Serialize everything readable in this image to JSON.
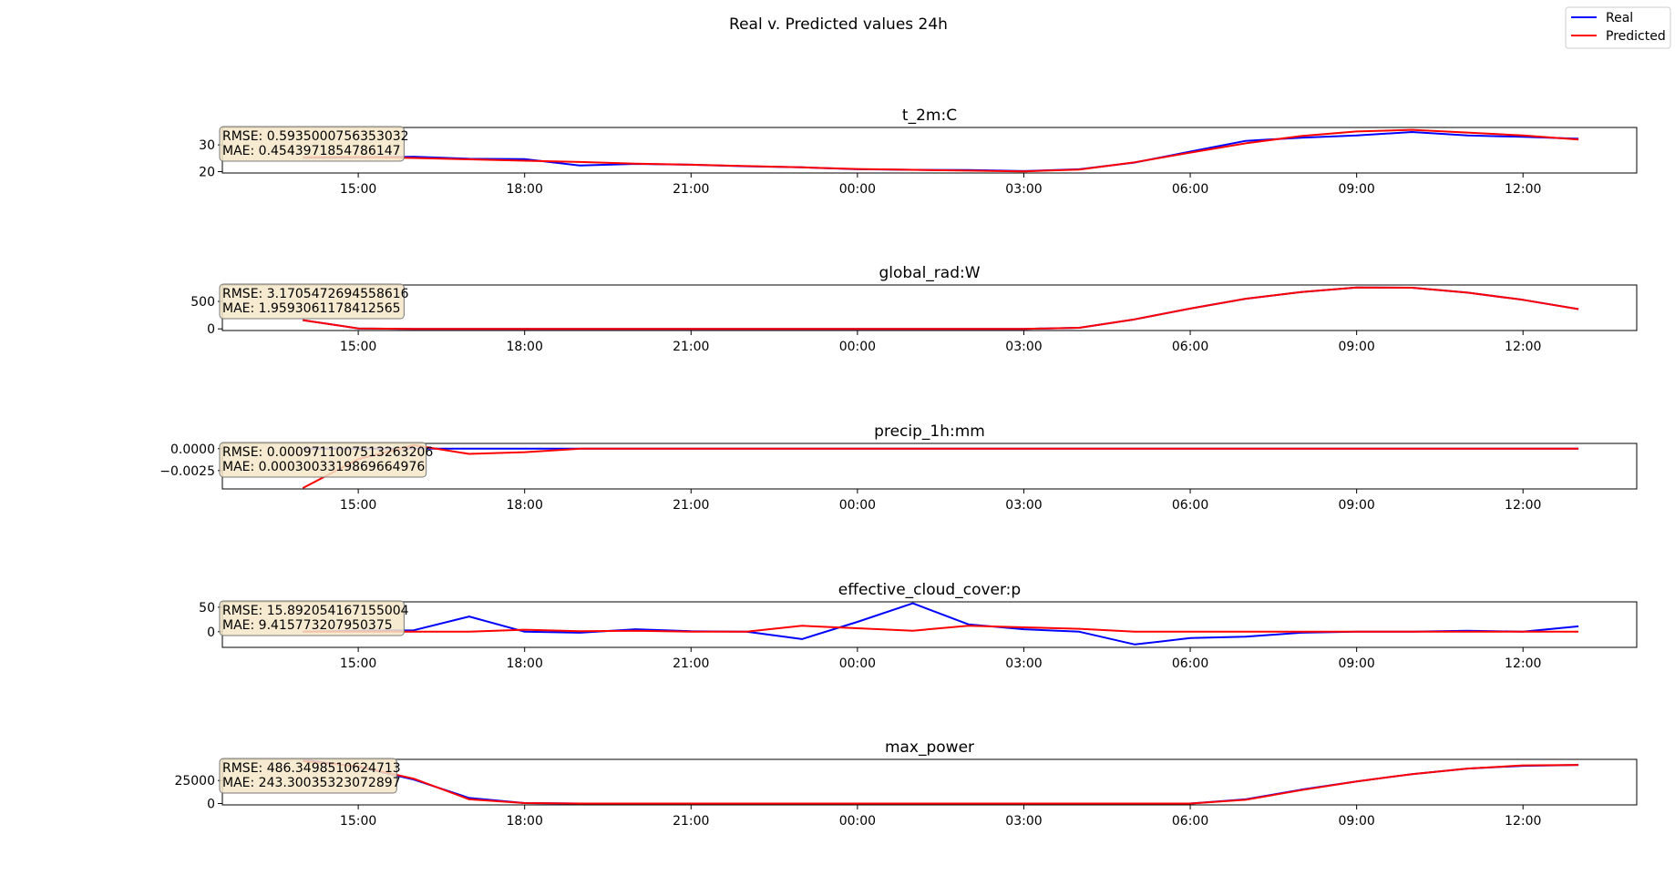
{
  "title": "Real v. Predicted values 24h",
  "legend": {
    "placement": "top-right",
    "entries": [
      {
        "name": "Real",
        "color": "#0000ff"
      },
      {
        "name": "Predicted",
        "color": "#ff0000"
      }
    ]
  },
  "chart_data": [
    {
      "type": "line",
      "title": "t_2m:C",
      "x_ticks": [
        "15:00",
        "18:00",
        "21:00",
        "00:00",
        "03:00",
        "06:00",
        "09:00",
        "12:00"
      ],
      "ylim": [
        19.5,
        36.5
      ],
      "y_ticks": [
        "20",
        "30"
      ],
      "y_tick_values": [
        20,
        30
      ],
      "stats": [
        "RMSE: 0.5935000756353032",
        "MAE: 0.4543971854786147"
      ],
      "series": [
        {
          "name": "Real",
          "color": "#0000ff",
          "values": [
            25.2,
            25.3,
            25.6,
            24.8,
            24.7,
            22.3,
            22.9,
            22.6,
            22.0,
            21.6,
            20.9,
            20.7,
            20.6,
            20.2,
            20.9,
            23.4,
            27.5,
            31.5,
            32.7,
            33.5,
            34.8,
            33.5,
            33.0,
            32.3
          ]
        },
        {
          "name": "Predicted",
          "color": "#ff0000",
          "values": [
            25.4,
            25.5,
            25.1,
            24.6,
            24.1,
            23.6,
            23.0,
            22.6,
            22.1,
            21.6,
            21.0,
            20.7,
            20.4,
            20.1,
            20.8,
            23.5,
            27.1,
            30.6,
            33.3,
            35.0,
            35.6,
            34.6,
            33.5,
            32.0
          ]
        }
      ]
    },
    {
      "type": "line",
      "title": "global_rad:W",
      "x_ticks": [
        "15:00",
        "18:00",
        "21:00",
        "00:00",
        "03:00",
        "06:00",
        "09:00",
        "12:00"
      ],
      "ylim": [
        -30,
        800
      ],
      "y_ticks": [
        "0",
        "500"
      ],
      "y_tick_values": [
        0,
        500
      ],
      "stats": [
        "RMSE: 3.1705472694558616",
        "MAE: 1.9593061178412565"
      ],
      "series": [
        {
          "name": "Real",
          "color": "#0000ff",
          "values": [
            160,
            8,
            0,
            0,
            0,
            0,
            0,
            0,
            0,
            0,
            0,
            0,
            0,
            0,
            20,
            175,
            370,
            550,
            670,
            755,
            750,
            660,
            530,
            360
          ]
        },
        {
          "name": "Predicted",
          "color": "#ff0000",
          "values": [
            160,
            8,
            0,
            0,
            0,
            0,
            0,
            0,
            0,
            0,
            0,
            0,
            0,
            0,
            20,
            175,
            370,
            550,
            670,
            755,
            750,
            660,
            530,
            360
          ]
        }
      ]
    },
    {
      "type": "line",
      "title": "precip_1h:mm",
      "x_ticks": [
        "15:00",
        "18:00",
        "21:00",
        "00:00",
        "03:00",
        "06:00",
        "09:00",
        "12:00"
      ],
      "ylim": [
        -0.0046,
        0.0006
      ],
      "y_ticks": [
        "0.0000",
        "−0.0025"
      ],
      "y_tick_values": [
        0,
        -0.0025
      ],
      "stats": [
        "RMSE: 0.0009711007513263206",
        "MAE: 0.0003003319869664976"
      ],
      "series": [
        {
          "name": "Real",
          "color": "#0000ff",
          "values": [
            0,
            0,
            0,
            0,
            0,
            0,
            0,
            0,
            0,
            0,
            0,
            0,
            0,
            0,
            0,
            0,
            0,
            0,
            0,
            0,
            0,
            0,
            0,
            0
          ]
        },
        {
          "name": "Predicted",
          "color": "#ff0000",
          "values": [
            -0.0045,
            -0.0012,
            0.0004,
            -0.0006,
            -0.0004,
            0,
            0,
            0,
            0,
            0,
            0,
            0,
            0,
            0,
            0,
            0,
            0,
            0,
            0,
            0,
            0,
            0,
            0,
            0
          ]
        }
      ]
    },
    {
      "type": "line",
      "title": "effective_cloud_cover:p",
      "x_ticks": [
        "15:00",
        "18:00",
        "21:00",
        "00:00",
        "03:00",
        "06:00",
        "09:00",
        "12:00"
      ],
      "ylim": [
        -32,
        61
      ],
      "y_ticks": [
        "50",
        "0"
      ],
      "y_tick_values": [
        50,
        0
      ],
      "stats": [
        "RMSE: 15.892054167155004",
        "MAE: 9.415773207950375"
      ],
      "series": [
        {
          "name": "Real",
          "color": "#0000ff",
          "values": [
            0,
            2,
            3,
            31,
            0,
            -2,
            5,
            1,
            0,
            -15,
            20,
            58,
            15,
            5,
            0,
            -26,
            -13,
            -10,
            -2,
            0,
            0,
            2,
            0,
            11
          ]
        },
        {
          "name": "Predicted",
          "color": "#ff0000",
          "values": [
            0,
            0,
            0,
            0,
            4,
            1,
            2,
            0,
            0,
            12,
            7,
            2,
            12,
            9,
            6,
            0,
            0,
            0,
            0,
            0,
            0,
            0,
            0,
            0
          ]
        }
      ]
    },
    {
      "type": "line",
      "title": "max_power",
      "x_ticks": [
        "15:00",
        "18:00",
        "21:00",
        "00:00",
        "03:00",
        "06:00",
        "09:00",
        "12:00"
      ],
      "ylim": [
        -1500,
        48000
      ],
      "y_ticks": [
        "25000",
        "0"
      ],
      "y_tick_values": [
        25000,
        0
      ],
      "stats": [
        "RMSE: 486.3498510624713",
        "MAE: 243.30035323072897"
      ],
      "series": [
        {
          "name": "Real",
          "color": "#0000ff",
          "values": [
            47500,
            40000,
            26000,
            6000,
            500,
            0,
            0,
            0,
            0,
            0,
            0,
            0,
            0,
            0,
            0,
            0,
            0,
            4500,
            15000,
            24000,
            32000,
            38000,
            41000,
            42000
          ]
        },
        {
          "name": "Predicted",
          "color": "#ff0000",
          "values": [
            46000,
            40500,
            27000,
            4500,
            500,
            0,
            0,
            0,
            0,
            0,
            0,
            0,
            0,
            0,
            0,
            0,
            0,
            4000,
            14500,
            24000,
            32000,
            38000,
            41500,
            42000
          ]
        }
      ]
    }
  ]
}
